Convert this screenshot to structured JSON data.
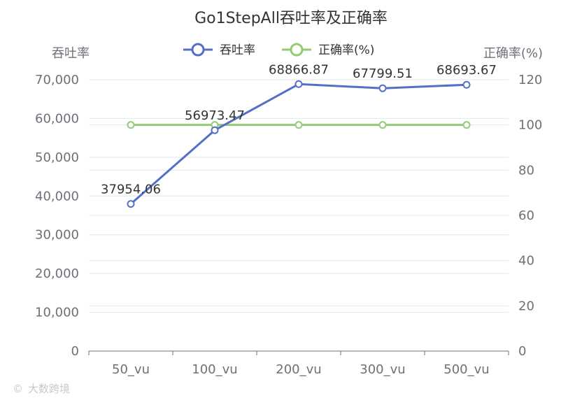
{
  "chart_data": {
    "type": "line",
    "title": "Go1StepAll吞吐率及正确率",
    "categories": [
      "50_vu",
      "100_vu",
      "200_vu",
      "300_vu",
      "500_vu"
    ],
    "series": [
      {
        "name": "吞吐率",
        "axis": "left",
        "color": "#5470c6",
        "values": [
          37954.06,
          56973.47,
          68866.87,
          67799.51,
          68693.67
        ],
        "labels": [
          "37954.06",
          "56973.47",
          "68866.87",
          "67799.51",
          "68693.67"
        ]
      },
      {
        "name": "正确率(%)",
        "axis": "right",
        "color": "#91cc75",
        "values": [
          100,
          100,
          100,
          100,
          100
        ]
      }
    ],
    "y_left": {
      "label": "吞吐率",
      "ylim": [
        0,
        70000
      ],
      "ticks": [
        0,
        10000,
        20000,
        30000,
        40000,
        50000,
        60000,
        70000
      ],
      "tick_labels": [
        "0",
        "10,000",
        "20,000",
        "30,000",
        "40,000",
        "50,000",
        "60,000",
        "70,000"
      ]
    },
    "y_right": {
      "label": "正确率(%)",
      "ylim": [
        0,
        120
      ],
      "ticks": [
        0,
        20,
        40,
        60,
        80,
        100,
        120
      ],
      "tick_labels": [
        "0",
        "20",
        "40",
        "60",
        "80",
        "100",
        "120"
      ]
    },
    "legend_position": "top-center",
    "grid": true
  },
  "watermark": {
    "text": "大数跨境"
  }
}
